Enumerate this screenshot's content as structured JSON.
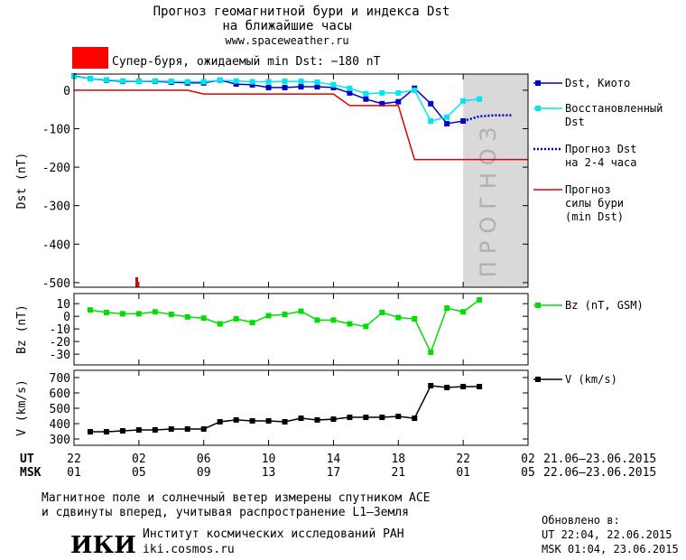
{
  "header": {
    "title": "Прогноз геомагнитной бури и индекса Dst",
    "subtitle": "на ближайшие часы",
    "url": "www.spaceweather.ru"
  },
  "alert": "Супер-буря, ожидаемый min Dst: −180 nT",
  "chart_data": [
    {
      "type": "line",
      "ylabel": "Dst (nT)",
      "ylim": [
        -512,
        42
      ],
      "yticks": [
        0,
        -100,
        -200,
        -300,
        -400,
        -500
      ],
      "xlim": [
        0,
        28
      ],
      "forecast_range": [
        24,
        28
      ],
      "forecast_label": "ПРОГНОЗ",
      "series": [
        {
          "name": "Dst, Киото",
          "color": "#0000cc",
          "marker": "square",
          "x": [
            0,
            1,
            2,
            3,
            4,
            5,
            6,
            7,
            8,
            9,
            10,
            11,
            12,
            13,
            14,
            15,
            16,
            17,
            18,
            19,
            20,
            21,
            22,
            23,
            24
          ],
          "values": [
            37,
            30,
            26,
            23,
            23,
            23,
            21,
            19,
            19,
            26,
            16,
            14,
            7,
            7,
            9,
            9,
            7,
            -7,
            -23,
            -35,
            -30,
            5,
            -35,
            -87,
            -80
          ]
        },
        {
          "name": "Восстановленный\nDst",
          "color": "#00e5ee",
          "marker": "square",
          "x": [
            0,
            1,
            2,
            3,
            4,
            5,
            6,
            7,
            8,
            9,
            10,
            11,
            12,
            13,
            14,
            15,
            16,
            17,
            18,
            19,
            20,
            21,
            22,
            23,
            24,
            25
          ],
          "values": [
            36,
            30,
            27,
            24,
            23,
            24,
            23,
            22,
            22,
            26,
            24,
            22,
            22,
            23,
            23,
            21,
            14,
            5,
            -9,
            -7,
            -7,
            0,
            -80,
            -70,
            -28,
            -23
          ]
        },
        {
          "name": "Прогноз Dst\nна 2-4 часа",
          "color": "#0000cc",
          "dashed": true,
          "x": [
            24,
            25,
            26,
            27
          ],
          "values": [
            -80,
            -68,
            -65,
            -65
          ]
        },
        {
          "name": "Прогноз\nсилы бури\n(min Dst)",
          "color": "#dd0000",
          "x": [
            0,
            7,
            8,
            16,
            17,
            20,
            21,
            28
          ],
          "values": [
            0,
            0,
            -10,
            -10,
            -40,
            -40,
            -180,
            -180
          ]
        }
      ]
    },
    {
      "type": "line",
      "ylabel": "Bz (nT)",
      "ylim": [
        -38.5,
        18
      ],
      "yticks": [
        10,
        0,
        -10,
        -20,
        -30
      ],
      "xlim": [
        0,
        28
      ],
      "series": [
        {
          "name": "Bz (nT, GSM)",
          "color": "#00dd00",
          "marker": "square",
          "x": [
            1,
            2,
            3,
            4,
            5,
            6,
            7,
            8,
            9,
            10,
            11,
            12,
            13,
            14,
            15,
            16,
            17,
            18,
            19,
            20,
            21,
            22,
            23,
            24,
            25
          ],
          "values": [
            5,
            3,
            2,
            2,
            3.5,
            1.5,
            -0.5,
            -1.5,
            -6,
            -2,
            -5,
            0.5,
            1.5,
            4,
            -3,
            -3,
            -6,
            -8,
            3,
            -1,
            -2,
            -28.5,
            6.5,
            3.5,
            13
          ]
        }
      ]
    },
    {
      "type": "line",
      "ylabel": "V (km/s)",
      "ylim": [
        259,
        747
      ],
      "yticks": [
        300,
        400,
        500,
        600,
        700
      ],
      "xlim": [
        0,
        28
      ],
      "xticks": [
        {
          "value": 0,
          "label": "22"
        },
        {
          "value": 4,
          "label": "02"
        },
        {
          "value": 8,
          "label": "06"
        },
        {
          "value": 12,
          "label": "10"
        },
        {
          "value": 16,
          "label": "14"
        },
        {
          "value": 20,
          "label": "18"
        },
        {
          "value": 24,
          "label": "22"
        },
        {
          "value": 28,
          "label": "02"
        }
      ],
      "xticks_msk": [
        {
          "value": 0,
          "label": "01"
        },
        {
          "value": 4,
          "label": "05"
        },
        {
          "value": 8,
          "label": "09"
        },
        {
          "value": 12,
          "label": "13"
        },
        {
          "value": 16,
          "label": "17"
        },
        {
          "value": 20,
          "label": "21"
        },
        {
          "value": 24,
          "label": "01"
        },
        {
          "value": 28,
          "label": "05"
        }
      ],
      "xrow_labels": [
        "UT",
        "MSK"
      ],
      "date_ranges": [
        "21.06–23.06.2015",
        "22.06–23.06.2015"
      ],
      "series": [
        {
          "name": "V (km/s)",
          "color": "#000000",
          "marker": "square",
          "x": [
            1,
            2,
            3,
            4,
            5,
            6,
            7,
            8,
            9,
            10,
            11,
            12,
            13,
            14,
            15,
            16,
            17,
            18,
            19,
            20,
            21,
            22,
            23,
            24,
            25
          ],
          "values": [
            347,
            347,
            353,
            359,
            359,
            365,
            365,
            365,
            412,
            424,
            418,
            418,
            412,
            435,
            424,
            429,
            441,
            441,
            441,
            447,
            435,
            647,
            635,
            641,
            641
          ]
        }
      ]
    }
  ],
  "footer": {
    "note": [
      "Магнитное поле и солнечный ветер измерены спутником ACE",
      "и сдвинуты вперед, учитывая распространение L1–Земля"
    ],
    "logo": "ИКИ",
    "institute": "Институт космических исследований РАН",
    "site": "iki.cosmos.ru",
    "updated": [
      "Обновлено в:",
      "UT  22:04, 22.06.2015",
      "MSK 01:04, 23.06.2015"
    ]
  }
}
